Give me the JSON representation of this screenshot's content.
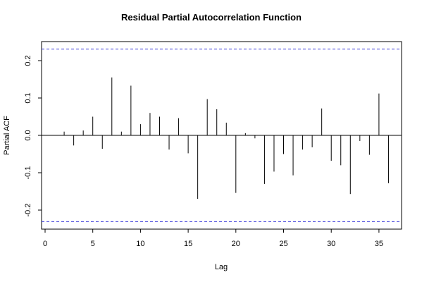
{
  "chart_data": {
    "type": "bar",
    "title": "Residual Partial Autocorrelation Function",
    "xlabel": "Lag",
    "ylabel": "Partial ACF",
    "xlim": [
      0,
      37
    ],
    "ylim": [
      -0.25,
      0.25
    ],
    "x_ticks": [
      0,
      5,
      10,
      15,
      20,
      25,
      30,
      35
    ],
    "y_ticks": [
      -0.2,
      -0.1,
      0.0,
      0.1,
      0.2
    ],
    "x_tick_labels": [
      "0",
      "5",
      "10",
      "15",
      "20",
      "25",
      "30",
      "35"
    ],
    "y_tick_labels": [
      "-0.2",
      "-0.1",
      "0.0",
      "0.1",
      "0.2"
    ],
    "confidence_bounds": [
      0.231,
      -0.231
    ],
    "confidence_color": "#3a3ad8",
    "lags": [
      1,
      2,
      3,
      4,
      5,
      6,
      7,
      8,
      9,
      10,
      11,
      12,
      13,
      14,
      15,
      16,
      17,
      18,
      19,
      20,
      21,
      22,
      23,
      24,
      25,
      26,
      27,
      28,
      29,
      30,
      31,
      32,
      33,
      34,
      35,
      36
    ],
    "values": [
      0.0,
      0.01,
      -0.027,
      0.013,
      0.05,
      -0.036,
      0.155,
      0.01,
      0.133,
      0.03,
      0.06,
      0.05,
      -0.038,
      0.046,
      -0.048,
      -0.17,
      0.097,
      0.07,
      0.034,
      -0.154,
      0.006,
      -0.008,
      -0.13,
      -0.097,
      -0.05,
      -0.107,
      -0.038,
      -0.032,
      0.072,
      -0.068,
      -0.08,
      -0.157,
      -0.015,
      -0.052,
      0.112,
      -0.128
    ]
  }
}
